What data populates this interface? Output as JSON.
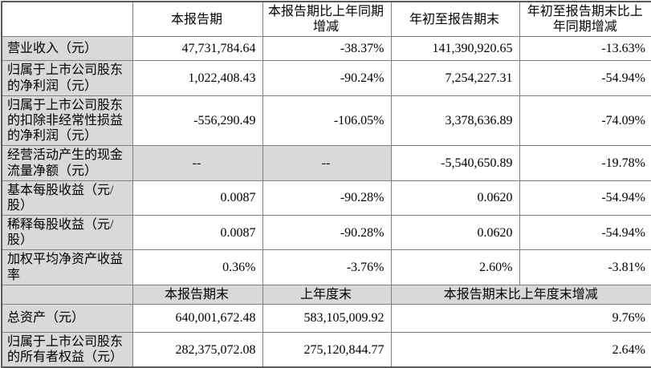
{
  "colors": {
    "cell_gray": "#d9d9d9",
    "inner_border": "#808080",
    "outer_border": "#595959",
    "text": "#000000"
  },
  "table": {
    "header_row1": {
      "corner": "",
      "current_period": "本报告期",
      "current_period_change": "本报告期比上年同期增减",
      "ytd": "年初至报告期末",
      "ytd_change": "年初至报告期末比上年同期增减"
    },
    "period_rows": [
      {
        "label": "营业收入（元）",
        "current": "47,731,784.64",
        "current_change": "-38.37%",
        "ytd": "141,390,920.65",
        "ytd_change": "-13.63%"
      },
      {
        "label": "归属于上市公司股东的净利润（元）",
        "current": "1,022,408.43",
        "current_change": "-90.24%",
        "ytd": "7,254,227.31",
        "ytd_change": "-54.94%"
      },
      {
        "label": "归属于上市公司股东的扣除非经常性损益的净利润（元）",
        "current": "-556,290.49",
        "current_change": "-106.05%",
        "ytd": "3,378,636.89",
        "ytd_change": "-74.09%"
      },
      {
        "label": "经营活动产生的现金流量净额（元）",
        "current": "--",
        "current_change": "--",
        "ytd": "-5,540,650.89",
        "ytd_change": "-19.78%"
      },
      {
        "label": "基本每股收益（元/股）",
        "current": "0.0087",
        "current_change": "-90.28%",
        "ytd": "0.0620",
        "ytd_change": "-54.94%"
      },
      {
        "label": "稀释每股收益（元/股）",
        "current": "0.0087",
        "current_change": "-90.28%",
        "ytd": "0.0620",
        "ytd_change": "-54.94%"
      },
      {
        "label": "加权平均净资产收益率",
        "current": "0.36%",
        "current_change": "-3.76%",
        "ytd": "2.60%",
        "ytd_change": "-3.81%"
      }
    ],
    "header_row2": {
      "corner": "",
      "period_end": "本报告期末",
      "prev_year_end": "上年度末",
      "period_end_change": "本报告期末比上年度末增减"
    },
    "yearend_rows": [
      {
        "label": "总资产（元）",
        "period_end": "640,001,672.48",
        "prev_year_end": "583,105,009.92",
        "change": "9.76%"
      },
      {
        "label": "归属于上市公司股东的所有者权益（元）",
        "period_end": "282,375,072.08",
        "prev_year_end": "275,120,844.77",
        "change": "2.64%"
      }
    ]
  }
}
